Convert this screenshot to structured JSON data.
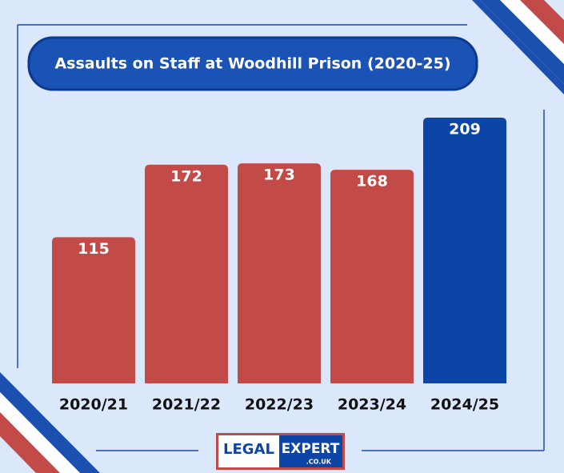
{
  "chart_data": {
    "type": "bar",
    "title": "Assaults on Staff at Woodhill Prison (2020-25)",
    "categories": [
      "2020/21",
      "2021/22",
      "2022/23",
      "2023/24",
      "2024/25"
    ],
    "values": [
      115,
      172,
      173,
      168,
      209
    ],
    "colors": [
      "#c24b48",
      "#c24b48",
      "#c24b48",
      "#c24b48",
      "#0d45a6"
    ]
  },
  "logo": {
    "left": "LEGAL",
    "right": "EXPERT",
    "sub": ".CO.UK"
  }
}
